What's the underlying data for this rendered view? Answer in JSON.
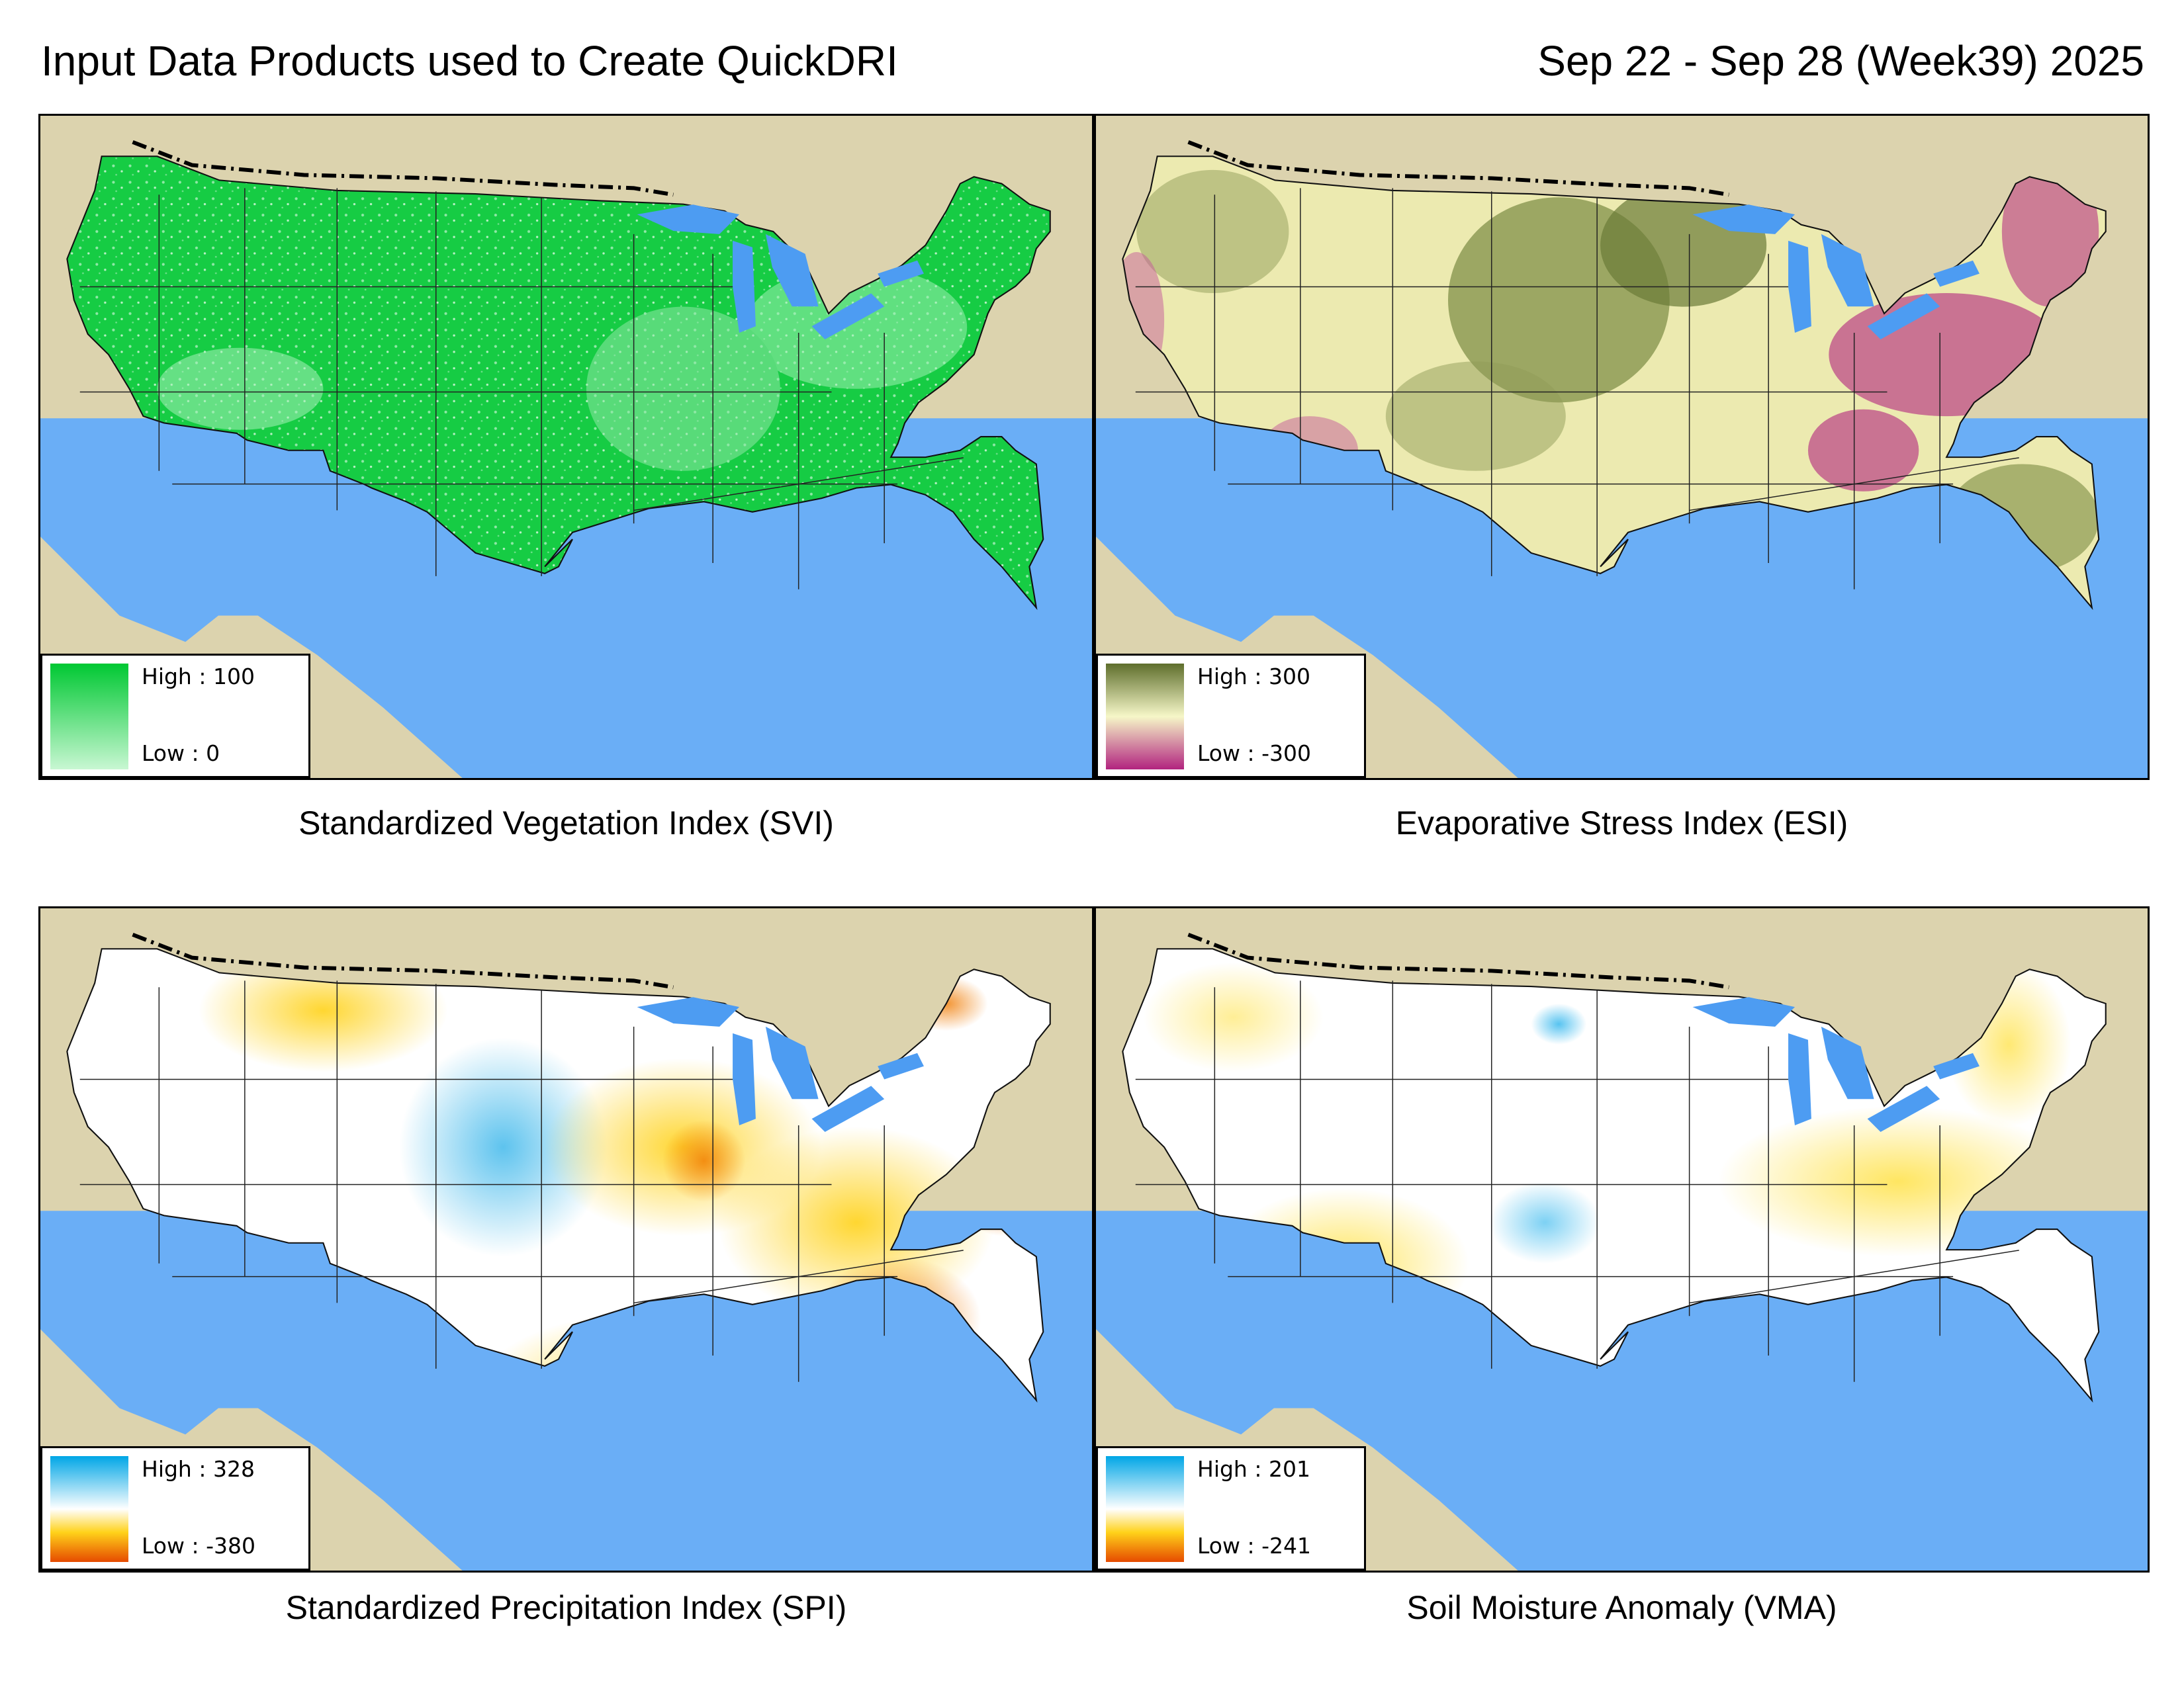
{
  "header": {
    "title": "Input Data Products used to Create QuickDRI",
    "date_range": "Sep 22 - Sep 28 (Week39) 2025"
  },
  "panels": [
    {
      "caption": "Standardized Vegetation Index (SVI)",
      "legend": {
        "high_label": "High",
        "high_value": "100",
        "low_label": "Low",
        "low_value": "0",
        "separator": ":"
      },
      "colors": {
        "high": "#00c832",
        "low": "#c8f7d2",
        "fill_dominant": "#16cc44"
      }
    },
    {
      "caption": "Evaporative Stress Index (ESI)",
      "legend": {
        "high_label": "High",
        "high_value": "300",
        "low_label": "Low",
        "low_value": "-300",
        "separator": ":"
      },
      "colors": {
        "high": "#5e6e2c",
        "mid": "#f6f7c8",
        "low": "#b2237f",
        "fill_dominant": "#eceab0"
      }
    },
    {
      "caption": "Standardized Precipitation Index (SPI)",
      "legend": {
        "high_label": "High",
        "high_value": "328",
        "low_label": "Low",
        "low_value": "-380",
        "separator": ":"
      },
      "colors": {
        "high": "#00a6e6",
        "mid": "#ffffff",
        "low": "#e64a00",
        "fill_dominant": "#ffffff"
      }
    },
    {
      "caption": "Soil Moisture Anomaly (VMA)",
      "legend": {
        "high_label": "High",
        "high_value": "201",
        "low_label": "Low",
        "low_value": "-241",
        "separator": ":"
      },
      "colors": {
        "high": "#00a6e6",
        "mid": "#ffffff",
        "low": "#e64a00",
        "fill_dominant": "#ffffff"
      }
    }
  ],
  "map_colors": {
    "ocean": "#6aaef6",
    "land_outside": "#dcd3ae",
    "great_lakes": "#4d9cf2",
    "borders": "#000000"
  }
}
